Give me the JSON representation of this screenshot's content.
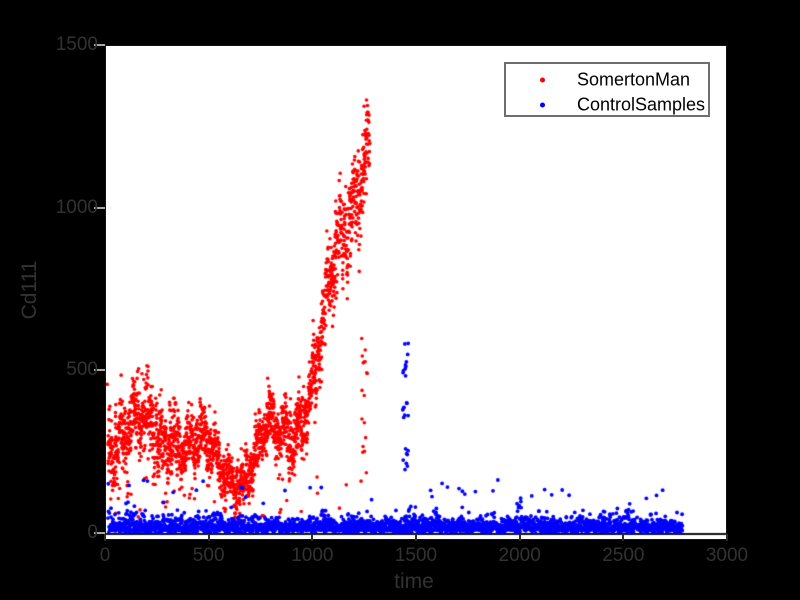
{
  "figure": {
    "background_color": "#000000",
    "plot_background_color": "#ffffff",
    "tick_label_color": "#323232",
    "axis_label_color": "#323232"
  },
  "chart_data": {
    "type": "scatter",
    "title": "",
    "xlabel": "time",
    "ylabel": "Cd111",
    "xlim": [
      0,
      3000
    ],
    "ylim": [
      0,
      1500
    ],
    "xticks": [
      0,
      500,
      1000,
      1500,
      2000,
      2500,
      3000
    ],
    "yticks": [
      0,
      500,
      1000,
      1500
    ],
    "grid": false,
    "legend_position": "northeast",
    "series": [
      {
        "name": "SomertonMan",
        "color": "#ff0000",
        "marker": "dot",
        "marker_radius_px": 1.8,
        "x_range": [
          10,
          1270
        ],
        "n_points": 2300,
        "seed": 7,
        "mean_profile": [
          [
            0,
            330
          ],
          [
            150,
            320
          ],
          [
            250,
            295
          ],
          [
            330,
            340
          ],
          [
            420,
            275
          ],
          [
            520,
            215
          ],
          [
            600,
            195
          ],
          [
            680,
            190
          ],
          [
            730,
            245
          ],
          [
            780,
            300
          ],
          [
            830,
            280
          ],
          [
            900,
            335
          ],
          [
            950,
            400
          ],
          [
            1000,
            480
          ],
          [
            1050,
            600
          ],
          [
            1100,
            770
          ],
          [
            1150,
            930
          ],
          [
            1200,
            1070
          ],
          [
            1250,
            1220
          ],
          [
            1270,
            1270
          ]
        ],
        "spread_profile": [
          [
            0,
            115
          ],
          [
            300,
            112
          ],
          [
            450,
            95
          ],
          [
            600,
            75
          ],
          [
            750,
            85
          ],
          [
            900,
            100
          ],
          [
            1000,
            118
          ],
          [
            1100,
            140
          ],
          [
            1270,
            152
          ]
        ],
        "low_outlier_rate": 0.018,
        "y_min": 20,
        "y_max": 1430,
        "tail_column": {
          "x_range": [
            1228,
            1262
          ],
          "y_range": [
            120,
            620
          ],
          "count": 18
        }
      },
      {
        "name": "ControlSamples",
        "color": "#0000ff",
        "marker": "dot",
        "marker_radius_px": 1.9,
        "x_range": [
          12,
          2780
        ],
        "n_points": 2900,
        "seed": 23,
        "base_sigma": 20,
        "base_offset": 3,
        "cluster_gain": 0.9,
        "spike_rate": 0.015,
        "spike_add": [
          50,
          140
        ],
        "y_cap": 205,
        "spike_cluster": {
          "x_range": [
            1428,
            1458
          ],
          "groups": [
            [
              480,
              600,
              10
            ],
            [
              355,
              430,
              8
            ],
            [
              195,
              270,
              8
            ]
          ]
        }
      }
    ]
  }
}
